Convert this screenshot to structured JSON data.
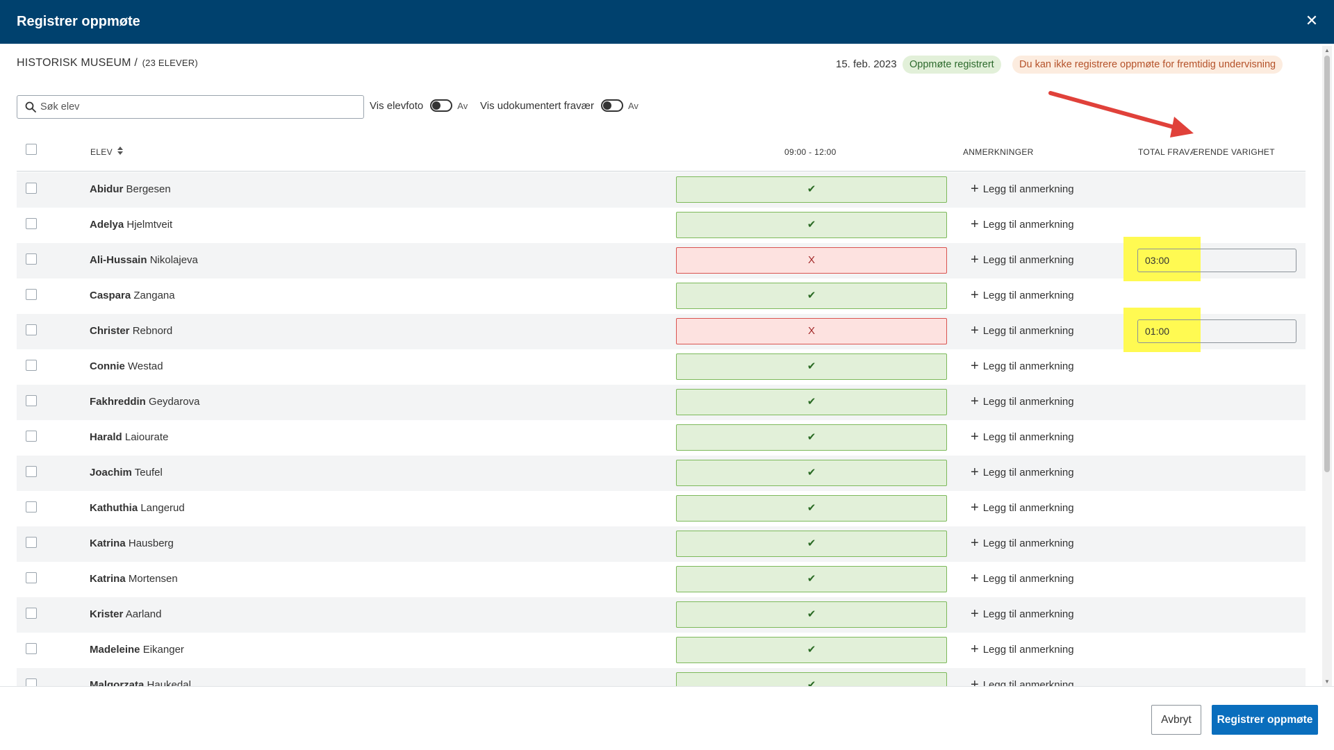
{
  "dialog": {
    "title": "Registrer oppmøte",
    "close_icon": "close-icon",
    "close_glyph": "✕"
  },
  "context": {
    "group": "HISTORISK MUSEUM",
    "separator": " / ",
    "count": "(23 ELEVER)",
    "date": "15. feb. 2023",
    "status_badge": "Oppmøte registrert",
    "warning_badge": "Du kan ikke registrere oppmøte for fremtidig undervisning"
  },
  "search": {
    "placeholder": "Søk elev",
    "value": "",
    "icon": "search-icon"
  },
  "toggles": {
    "photo_label": "Vis elevfoto",
    "photo_state": "Av",
    "absence_label": "Vis udokumentert fravær",
    "absence_state": "Av"
  },
  "table": {
    "headers": {
      "student": "ELEV",
      "time": "09:00 - 12:00",
      "remarks": "ANMERKNINGER",
      "duration": "TOTAL FRAVÆRENDE VARIGHET"
    },
    "add_note_label": "Legg til anmerkning",
    "present_glyph": "✔",
    "absent_glyph": "X",
    "rows": [
      {
        "first": "Abidur",
        "last": "Bergesen",
        "status": "present",
        "duration": ""
      },
      {
        "first": "Adelya",
        "last": "Hjelmtveit",
        "status": "present",
        "duration": ""
      },
      {
        "first": "Ali-Hussain",
        "last": "Nikolajeva",
        "status": "absent",
        "duration": "03:00"
      },
      {
        "first": "Caspara",
        "last": "Zangana",
        "status": "present",
        "duration": ""
      },
      {
        "first": "Christer",
        "last": "Rebnord",
        "status": "absent",
        "duration": "01:00"
      },
      {
        "first": "Connie",
        "last": "Westad",
        "status": "present",
        "duration": ""
      },
      {
        "first": "Fakhreddin",
        "last": "Geydarova",
        "status": "present",
        "duration": ""
      },
      {
        "first": "Harald",
        "last": "Laiourate",
        "status": "present",
        "duration": ""
      },
      {
        "first": "Joachim",
        "last": "Teufel",
        "status": "present",
        "duration": ""
      },
      {
        "first": "Kathuthia",
        "last": "Langerud",
        "status": "present",
        "duration": ""
      },
      {
        "first": "Katrina",
        "last": "Hausberg",
        "status": "present",
        "duration": ""
      },
      {
        "first": "Katrina",
        "last": "Mortensen",
        "status": "present",
        "duration": ""
      },
      {
        "first": "Krister",
        "last": "Aarland",
        "status": "present",
        "duration": ""
      },
      {
        "first": "Madeleine",
        "last": "Eikanger",
        "status": "present",
        "duration": ""
      },
      {
        "first": "Malgorzata",
        "last": "Haukedal",
        "status": "present",
        "duration": ""
      }
    ]
  },
  "footer": {
    "cancel_label": "Avbryt",
    "submit_label": "Registrer oppmøte"
  },
  "colors": {
    "header_bg": "#00416e",
    "present_bg": "#e2f0d9",
    "absent_bg": "#fde2e0",
    "primary_button": "#0a6ebd",
    "highlight": "#fffa52",
    "annotation_arrow": "#e0413a"
  }
}
